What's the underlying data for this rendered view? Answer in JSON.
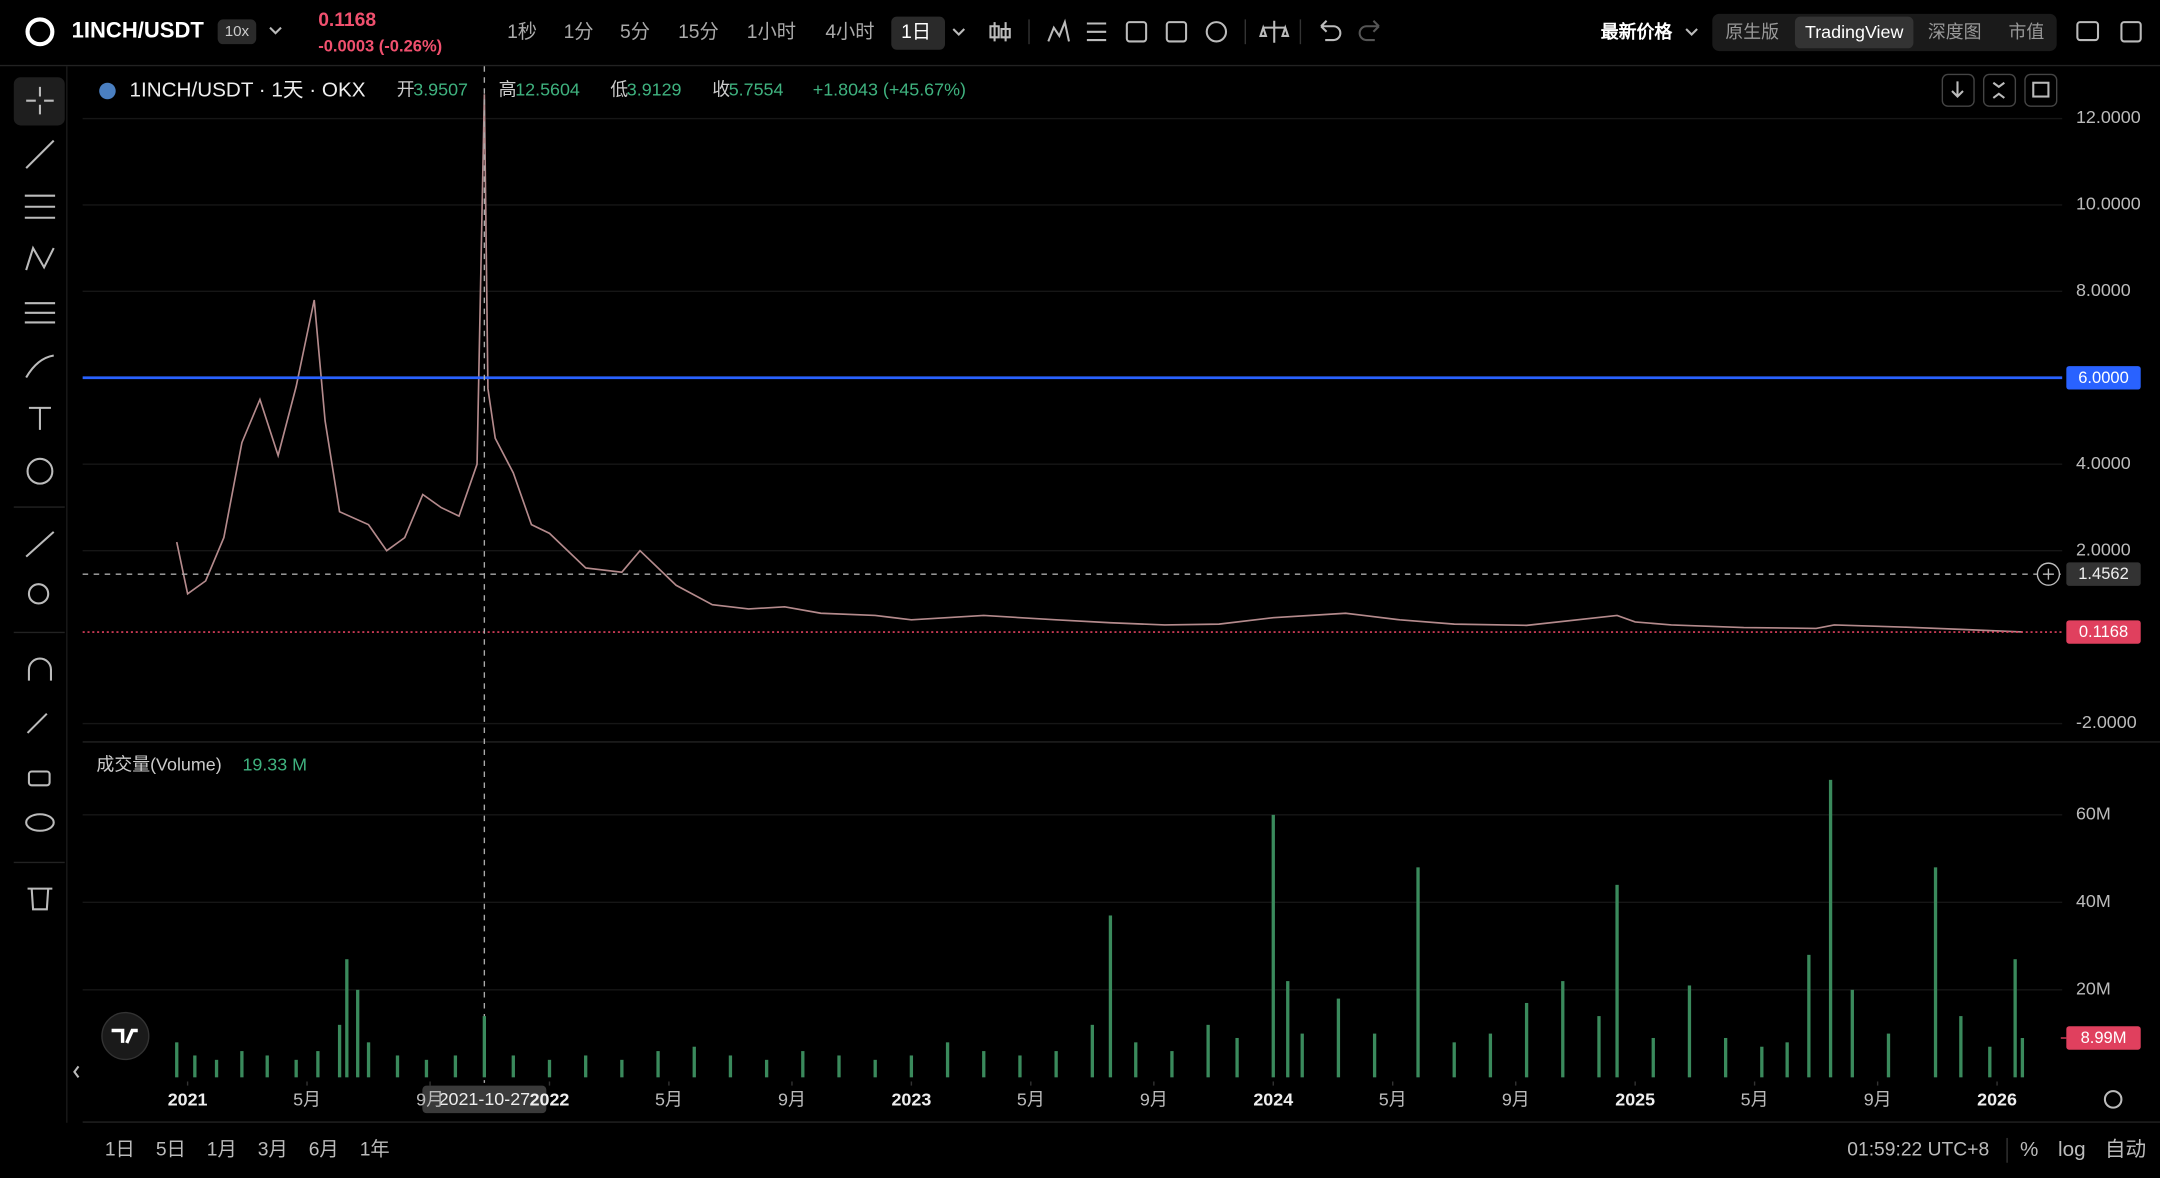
{
  "header": {
    "symbol": "1INCH/USDT",
    "leverage": "10x",
    "price": "0.1168",
    "change": "-0.0003 (-0.26%)",
    "intervals": [
      "1秒",
      "1分",
      "5分",
      "15分",
      "1小时",
      "4小时",
      "1日"
    ],
    "price_mode": "最新价格",
    "views": [
      "原生版",
      "TradingView",
      "深度图",
      "市值"
    ]
  },
  "legend": {
    "title": "1INCH/USDT · 1天 · OKX",
    "open_label": "开",
    "open": "3.9507",
    "high_label": "高",
    "high": "12.5604",
    "low_label": "低",
    "low": "3.9129",
    "close_label": "收",
    "close": "5.7554",
    "change": "+1.8043 (+45.67%)"
  },
  "chart_data": [
    {
      "type": "line",
      "color": "#b48a8c",
      "x": [
        2020.97,
        2021.0,
        2021.05,
        2021.1,
        2021.15,
        2021.2,
        2021.25,
        2021.3,
        2021.35,
        2021.38,
        2021.42,
        2021.5,
        2021.55,
        2021.6,
        2021.65,
        2021.7,
        2021.75,
        2021.8,
        2021.82,
        2021.83,
        2021.85,
        2021.9,
        2021.95,
        2022.0,
        2022.1,
        2022.2,
        2022.25,
        2022.35,
        2022.45,
        2022.55,
        2022.65,
        2022.75,
        2022.9,
        2023.0,
        2023.2,
        2023.4,
        2023.55,
        2023.7,
        2023.85,
        2024.0,
        2024.2,
        2024.25,
        2024.35,
        2024.5,
        2024.7,
        2024.95,
        2025.0,
        2025.1,
        2025.3,
        2025.5,
        2025.55,
        2025.75,
        2025.9,
        2026.07
      ],
      "values": [
        2.2,
        1.0,
        1.3,
        2.3,
        4.5,
        5.5,
        4.2,
        5.8,
        7.8,
        5.0,
        2.9,
        2.6,
        2.0,
        2.3,
        3.3,
        3.0,
        2.8,
        4.0,
        12.56,
        5.75,
        4.6,
        3.8,
        2.6,
        2.4,
        1.6,
        1.5,
        2.0,
        1.2,
        0.75,
        0.65,
        0.7,
        0.55,
        0.5,
        0.4,
        0.5,
        0.4,
        0.33,
        0.28,
        0.3,
        0.45,
        0.55,
        0.5,
        0.4,
        0.3,
        0.27,
        0.5,
        0.35,
        0.28,
        0.22,
        0.2,
        0.28,
        0.23,
        0.18,
        0.1168
      ],
      "xlim": [
        2020.71,
        2026.18
      ],
      "ylim": [
        -2.41,
        13.21
      ],
      "yticks": [
        {
          "value": 12,
          "label": "12.0000"
        },
        {
          "value": 10,
          "label": "10.0000"
        },
        {
          "value": 8,
          "label": "8.0000"
        },
        {
          "value": 4,
          "label": "4.0000"
        },
        {
          "value": 2,
          "label": "2.0000"
        },
        {
          "value": -2,
          "label": "-2.0000"
        }
      ],
      "grid": true,
      "price_lines": [
        {
          "value": 6,
          "label": "6.0000",
          "color": "#2962ff",
          "style": "solid"
        },
        {
          "value": 0.1168,
          "label": "0.1168",
          "color": "#e0405e",
          "style": "dotted"
        }
      ],
      "crosshair": {
        "x": {
          "value": 2021.82,
          "label": "2021-10-27"
        },
        "y": {
          "value": 1.4562,
          "label": "1.4562"
        }
      }
    },
    {
      "type": "bar",
      "title": "成交量(Volume)",
      "legend_value": "19.33 M",
      "color": "#3a8a5c",
      "x": [
        2020.97,
        2021.02,
        2021.08,
        2021.15,
        2021.22,
        2021.3,
        2021.36,
        2021.42,
        2021.44,
        2021.47,
        2021.5,
        2021.58,
        2021.66,
        2021.74,
        2021.82,
        2021.9,
        2022.0,
        2022.1,
        2022.2,
        2022.3,
        2022.4,
        2022.5,
        2022.6,
        2022.7,
        2022.8,
        2022.9,
        2023.0,
        2023.1,
        2023.2,
        2023.3,
        2023.4,
        2023.5,
        2023.55,
        2023.62,
        2023.72,
        2023.82,
        2023.9,
        2024.0,
        2024.04,
        2024.08,
        2024.18,
        2024.28,
        2024.4,
        2024.5,
        2024.6,
        2024.7,
        2024.8,
        2024.9,
        2024.95,
        2025.05,
        2025.15,
        2025.25,
        2025.35,
        2025.42,
        2025.48,
        2025.54,
        2025.6,
        2025.7,
        2025.83,
        2025.9,
        2025.98,
        2026.05,
        2026.07
      ],
      "values": [
        8,
        5,
        4,
        6,
        5,
        4,
        6,
        12,
        27,
        20,
        8,
        5,
        4,
        5,
        14,
        5,
        4,
        5,
        4,
        6,
        7,
        5,
        4,
        6,
        5,
        4,
        5,
        8,
        6,
        5,
        6,
        12,
        37,
        8,
        6,
        12,
        9,
        60,
        22,
        10,
        18,
        10,
        48,
        8,
        10,
        17,
        22,
        14,
        44,
        9,
        21,
        9,
        7,
        8,
        28,
        68,
        20,
        10,
        48,
        14,
        7,
        27,
        8.99
      ],
      "xlim": [
        2020.71,
        2026.18
      ],
      "ylim": [
        0,
        76.2
      ],
      "yticks": [
        {
          "value": 60,
          "label": "60M"
        },
        {
          "value": 40,
          "label": "40M"
        },
        {
          "value": 20,
          "label": "20M"
        }
      ],
      "grid": true,
      "last": {
        "value": 8.99,
        "label": "8.99M",
        "color": "#e0405e"
      },
      "xticks": [
        {
          "value": 2021,
          "label": "2021"
        },
        {
          "value": 2021.33,
          "label": "5月"
        },
        {
          "value": 2021.67,
          "label": "9月"
        },
        {
          "value": 2022,
          "label": "2022"
        },
        {
          "value": 2022.33,
          "label": "5月"
        },
        {
          "value": 2022.67,
          "label": "9月"
        },
        {
          "value": 2023,
          "label": "2023"
        },
        {
          "value": 2023.33,
          "label": "5月"
        },
        {
          "value": 2023.67,
          "label": "9月"
        },
        {
          "value": 2024,
          "label": "2024"
        },
        {
          "value": 2024.33,
          "label": "5月"
        },
        {
          "value": 2024.67,
          "label": "9月"
        },
        {
          "value": 2025,
          "label": "2025"
        },
        {
          "value": 2025.33,
          "label": "5月"
        },
        {
          "value": 2025.67,
          "label": "9月"
        },
        {
          "value": 2026,
          "label": "2026"
        }
      ]
    }
  ],
  "footer": {
    "ranges": [
      "1日",
      "5日",
      "1月",
      "3月",
      "6月",
      "1年"
    ],
    "time": "01:59:22 UTC+8",
    "percent": "%",
    "log": "log",
    "auto": "自动"
  }
}
